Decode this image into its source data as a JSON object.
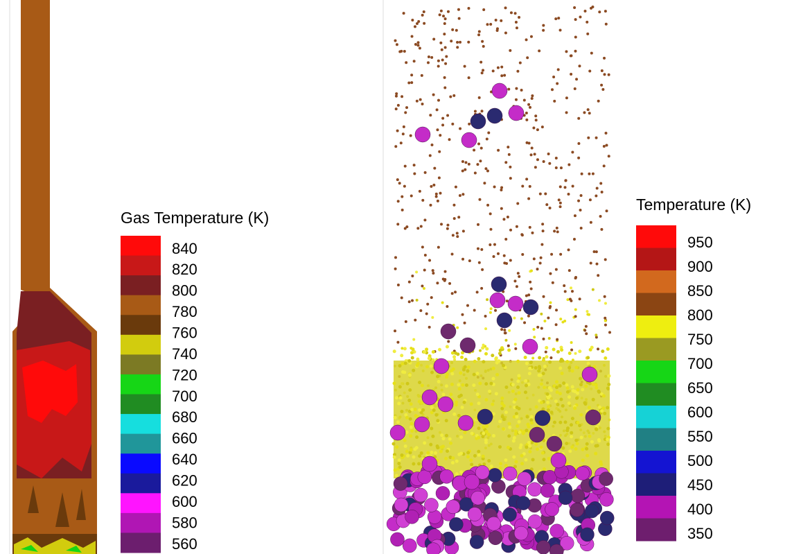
{
  "left_legend": {
    "title": "Gas Temperature (K)",
    "labels": [
      "840",
      "820",
      "800",
      "780",
      "760",
      "740",
      "720",
      "700",
      "680",
      "660",
      "640",
      "620",
      "600",
      "580",
      "560"
    ],
    "colors": [
      "#ff0a0a",
      "#c81818",
      "#7a1f22",
      "#a85a16",
      "#6a3a0c",
      "#d2cc0e",
      "#7c7a24",
      "#16d616",
      "#208c22",
      "#16dede",
      "#20969a",
      "#0a0aff",
      "#1a1a9c",
      "#ff14ff",
      "#b016b4",
      "#6c1e6e"
    ]
  },
  "right_legend": {
    "title": "Temperature (K)",
    "labels": [
      "950",
      "900",
      "850",
      "800",
      "750",
      "700",
      "650",
      "600",
      "550",
      "500",
      "450",
      "400",
      "350"
    ],
    "colors": [
      "#ff0a0a",
      "#b41616",
      "#d2691e",
      "#8b4513",
      "#eeee10",
      "#9a9a22",
      "#16d616",
      "#208c22",
      "#16d2d6",
      "#208084",
      "#1414d2",
      "#1e1e78",
      "#b414b4",
      "#6e1e6e"
    ]
  }
}
